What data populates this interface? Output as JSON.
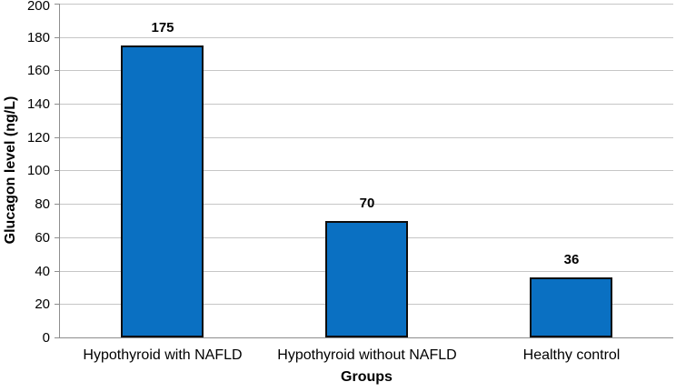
{
  "chart_data": {
    "type": "bar",
    "title": "",
    "categories": [
      "Hypothyroid with NAFLD",
      "Hypothyroid without NAFLD",
      "Healthy control"
    ],
    "values": [
      175,
      70,
      36
    ],
    "value_labels": [
      "175",
      "70",
      "36"
    ],
    "xlabel": "Groups",
    "ylabel": "Glucagon level (ng/L)",
    "ylim": [
      0,
      200
    ],
    "yticks": [
      0,
      20,
      40,
      60,
      80,
      100,
      120,
      140,
      160,
      180,
      200
    ],
    "grid": true,
    "legend_position": "none",
    "colors": {
      "bar_fill": "#0a70c2",
      "bar_border": "#0d0d0d",
      "gridline": "#c6c6c6",
      "axis_line": "#8e8e8e",
      "text": "#000000",
      "background": "#ffffff"
    }
  }
}
